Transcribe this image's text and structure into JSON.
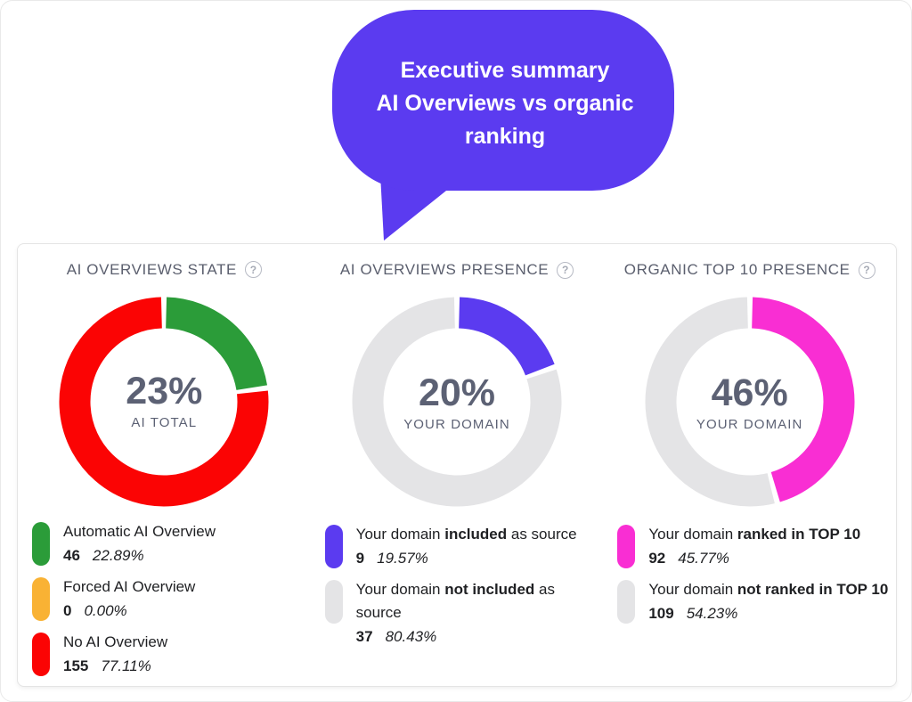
{
  "bubble": {
    "lines": [
      "Executive summary",
      "AI Overviews vs organic",
      "ranking"
    ],
    "color": "#5B3BF0",
    "text_color": "#ffffff"
  },
  "icons": {
    "help": "?"
  },
  "chart_data": [
    {
      "type": "pie",
      "title": "AI OVERVIEWS STATE",
      "center_value": "23%",
      "center_label": "AI TOTAL",
      "legend_position": "bottom",
      "segments": [
        {
          "label_pre": "Automatic AI Overview",
          "label_bold": "",
          "label_post": "",
          "count": 46,
          "pct": "22.89%",
          "color": "#2B9C39"
        },
        {
          "label_pre": "Forced AI Overview",
          "label_bold": "",
          "label_post": "",
          "count": 0,
          "pct": "0.00%",
          "color": "#F9B234"
        },
        {
          "label_pre": "No AI Overview",
          "label_bold": "",
          "label_post": "",
          "count": 155,
          "pct": "77.11%",
          "color": "#FB0404"
        }
      ]
    },
    {
      "type": "pie",
      "title": "AI OVERVIEWS PRESENCE",
      "center_value": "20%",
      "center_label": "YOUR DOMAIN",
      "legend_position": "bottom",
      "segments": [
        {
          "label_pre": "Your domain ",
          "label_bold": "included",
          "label_post": " as source",
          "count": 9,
          "pct": "19.57%",
          "color": "#5B3BF0"
        },
        {
          "label_pre": "Your domain ",
          "label_bold": "not included",
          "label_post": " as source",
          "count": 37,
          "pct": "80.43%",
          "color": "#E4E4E6"
        }
      ]
    },
    {
      "type": "pie",
      "title": "ORGANIC TOP 10 PRESENCE",
      "center_value": "46%",
      "center_label": "YOUR DOMAIN",
      "legend_position": "bottom",
      "segments": [
        {
          "label_pre": "Your domain ",
          "label_bold": "ranked in TOP 10",
          "label_post": "",
          "count": 92,
          "pct": "45.77%",
          "color": "#F92ED3"
        },
        {
          "label_pre": "Your domain ",
          "label_bold": "not ranked in TOP 10",
          "label_post": "",
          "count": 109,
          "pct": "54.23%",
          "color": "#E4E4E6"
        }
      ]
    }
  ]
}
